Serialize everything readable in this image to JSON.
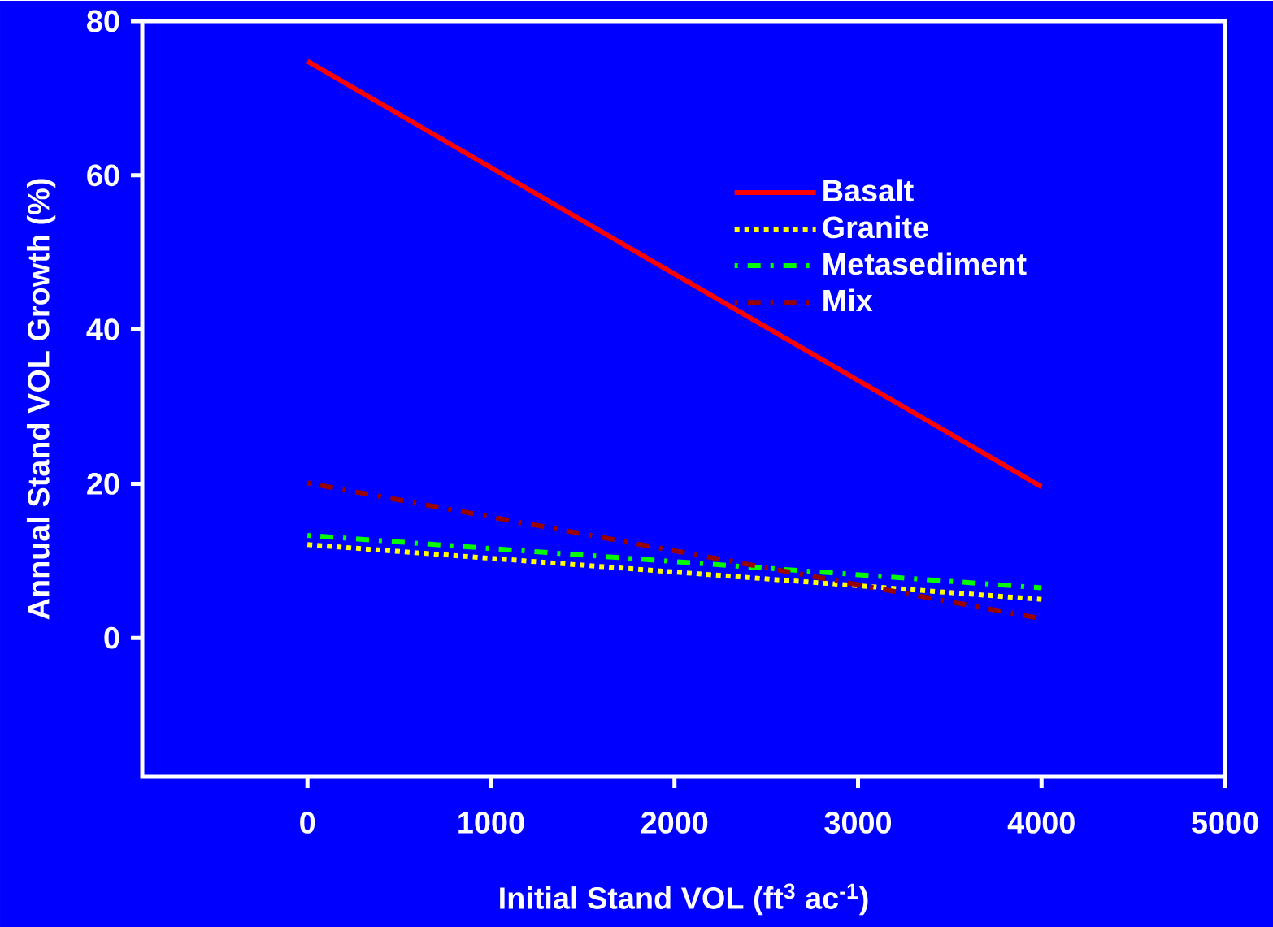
{
  "chart_data": {
    "type": "line",
    "xlabel": "Initial Stand VOL (ft$^{3}$ ac$^{-1}$)",
    "ylabel": "Annual Stand VOL Growth (%)",
    "x": [
      0,
      4000
    ],
    "series": [
      {
        "name": "Basalt",
        "color": "#ff0000",
        "line_style": "solid",
        "values": [
          74.8,
          19.6
        ]
      },
      {
        "name": "Granite",
        "color": "#ffff00",
        "line_style": "dotted",
        "values": [
          12.1,
          5.0
        ]
      },
      {
        "name": "Metasediment",
        "color": "#00ff00",
        "line_style": "dashed",
        "values": [
          13.3,
          6.5
        ]
      },
      {
        "name": "Mix",
        "color": "#990000",
        "line_style": "dashed",
        "values": [
          20.1,
          2.5
        ]
      }
    ],
    "xlim": [
      -900,
      5000
    ],
    "ylim": [
      -18,
      80
    ],
    "xticks": [
      0,
      1000,
      2000,
      3000,
      4000,
      5000
    ],
    "yticks": [
      0,
      20,
      40,
      60,
      80
    ],
    "legend": "top right",
    "grid": false,
    "marker": "none"
  }
}
